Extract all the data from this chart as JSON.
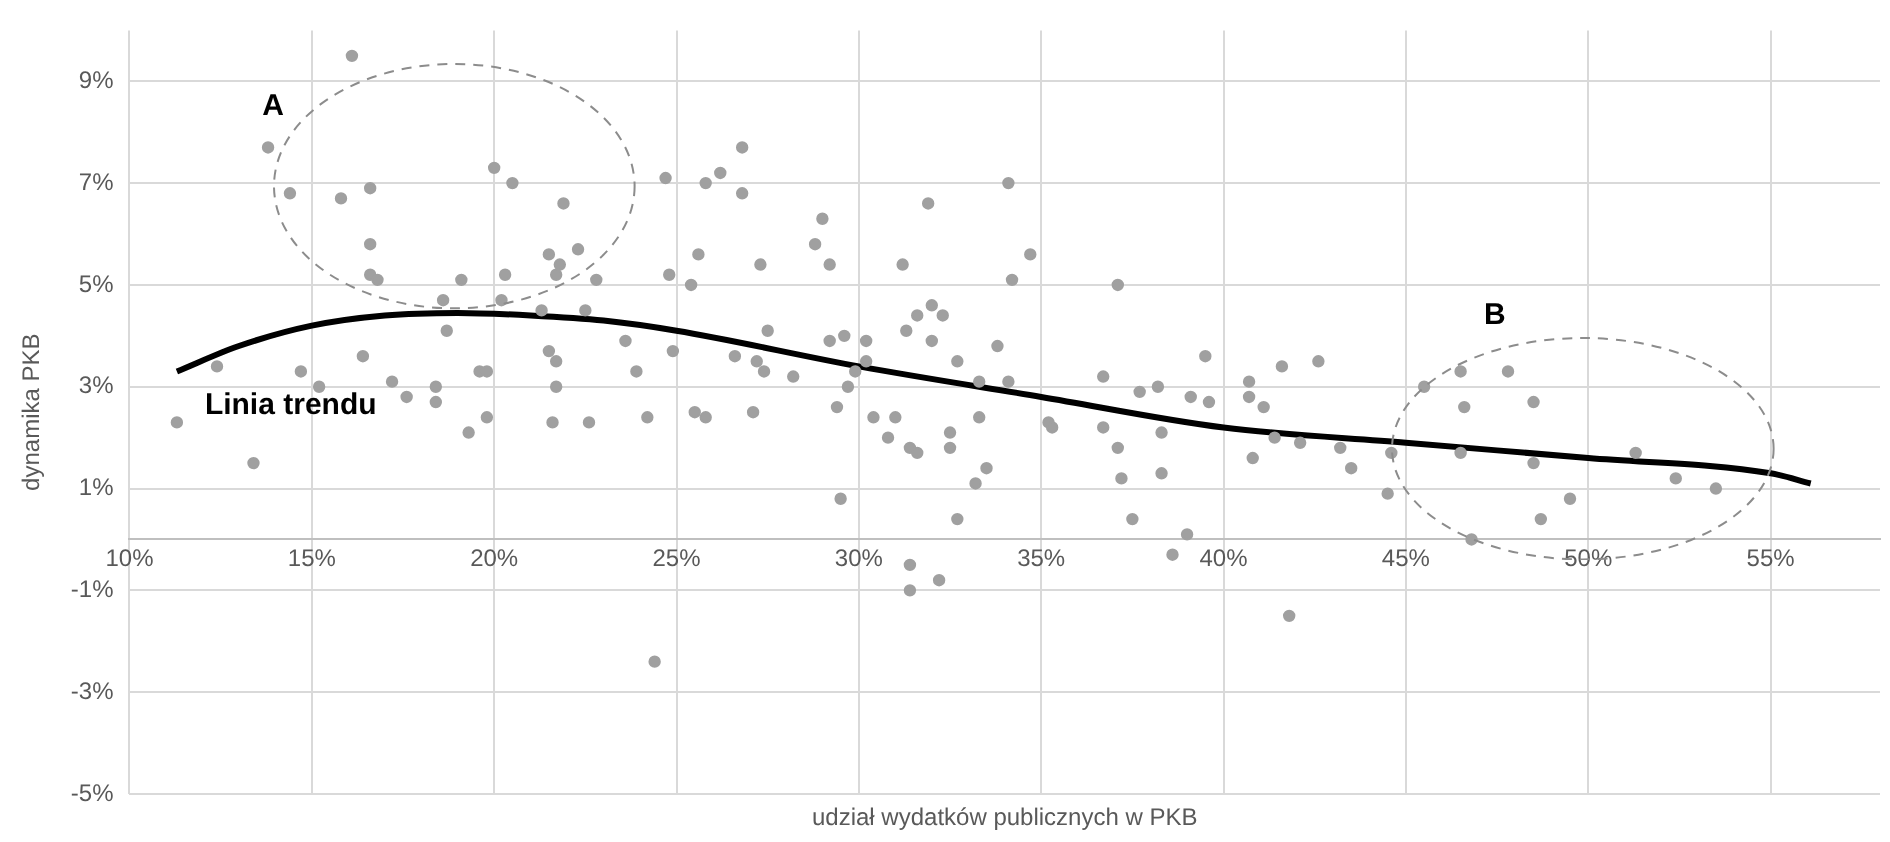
{
  "chart_data": {
    "type": "scatter",
    "xlabel": "udział wydatków publicznych w PKB",
    "ylabel": "dynamika PKB",
    "xlim": [
      10,
      58
    ],
    "ylim": [
      -5,
      10
    ],
    "xticks": [
      {
        "value": 10,
        "label": "10%"
      },
      {
        "value": 15,
        "label": "15%"
      },
      {
        "value": 20,
        "label": "20%"
      },
      {
        "value": 25,
        "label": "25%"
      },
      {
        "value": 30,
        "label": "30%"
      },
      {
        "value": 35,
        "label": "35%"
      },
      {
        "value": 40,
        "label": "40%"
      },
      {
        "value": 45,
        "label": "45%"
      },
      {
        "value": 50,
        "label": "50%"
      },
      {
        "value": 55,
        "label": "55%"
      }
    ],
    "yticks": [
      {
        "value": -5,
        "label": "-5%"
      },
      {
        "value": -3,
        "label": "-3%"
      },
      {
        "value": -1,
        "label": "-1%"
      },
      {
        "value": 1,
        "label": "1%"
      },
      {
        "value": 3,
        "label": "3%"
      },
      {
        "value": 5,
        "label": "5%"
      },
      {
        "value": 7,
        "label": "7%"
      },
      {
        "value": 9,
        "label": "9%"
      }
    ],
    "grid": true,
    "legend": false,
    "marker": "circle",
    "series": [
      {
        "color": "#a0a0a0",
        "x": [
          16.1,
          13.8,
          14.4,
          15.8,
          16.6,
          16.6,
          16.6,
          16.8,
          20.0,
          20.5,
          21.9,
          21.5,
          21.8,
          22.3,
          21.7,
          22.8,
          20.3,
          19.1,
          18.6,
          20.2,
          18.7,
          21.3,
          22.5,
          23.6,
          16.4,
          21.5,
          21.7,
          14.7,
          12.4,
          19.6,
          19.8,
          15.2,
          17.2,
          17.6,
          18.4,
          18.4,
          21.7,
          11.3,
          19.8,
          19.3,
          21.6,
          22.6,
          13.4,
          26.8,
          24.7,
          25.8,
          26.2,
          26.8,
          29.0,
          28.8,
          29.2,
          27.3,
          25.6,
          24.8,
          25.4,
          31.9,
          34.1,
          34.7,
          34.2,
          31.2,
          37.1,
          24.9,
          23.9,
          24.2,
          27.5,
          26.6,
          27.2,
          27.4,
          28.2,
          25.5,
          25.8,
          27.1,
          29.2,
          29.6,
          30.2,
          30.2,
          29.9,
          29.7,
          29.4,
          29.5,
          31.3,
          31.6,
          32.0,
          32.3,
          32.0,
          32.7,
          30.4,
          31.0,
          30.8,
          31.4,
          31.6,
          32.5,
          32.5,
          32.7,
          33.3,
          33.3,
          33.8,
          34.1,
          33.2,
          33.5,
          31.4,
          31.4,
          32.2,
          35.2,
          35.3,
          36.7,
          36.7,
          37.1,
          37.2,
          37.5,
          37.7,
          38.2,
          38.3,
          38.3,
          39.1,
          39.6,
          39.5,
          39.0,
          38.6,
          40.7,
          40.7,
          41.1,
          40.8,
          41.6,
          42.6,
          41.4,
          42.1,
          43.2,
          43.5,
          44.5,
          44.6,
          45.5,
          46.5,
          46.6,
          46.5,
          46.8,
          47.8,
          48.5,
          48.5,
          48.7,
          49.5,
          51.3,
          52.4,
          53.5,
          24.4,
          41.8
        ],
        "values": [
          9.5,
          7.7,
          6.8,
          6.7,
          6.9,
          5.8,
          5.2,
          5.1,
          7.3,
          7.0,
          6.6,
          5.6,
          5.4,
          5.7,
          5.2,
          5.1,
          5.2,
          5.1,
          4.7,
          4.7,
          4.1,
          4.5,
          4.5,
          3.9,
          3.6,
          3.7,
          3.5,
          3.3,
          3.4,
          3.3,
          3.3,
          3.0,
          3.1,
          2.8,
          3.0,
          2.7,
          3.0,
          2.3,
          2.4,
          2.1,
          2.3,
          2.3,
          1.5,
          7.7,
          7.1,
          7.0,
          7.2,
          6.8,
          6.3,
          5.8,
          5.4,
          5.4,
          5.6,
          5.2,
          5.0,
          6.6,
          7.0,
          5.6,
          5.1,
          5.4,
          5.0,
          3.7,
          3.3,
          2.4,
          4.1,
          3.6,
          3.5,
          3.3,
          3.2,
          2.5,
          2.4,
          2.5,
          3.9,
          4.0,
          3.9,
          3.5,
          3.3,
          3.0,
          2.6,
          0.8,
          4.1,
          4.4,
          4.6,
          4.4,
          3.9,
          3.5,
          2.4,
          2.4,
          2.0,
          1.8,
          1.7,
          2.1,
          1.8,
          0.4,
          2.4,
          3.1,
          3.8,
          3.1,
          1.1,
          1.4,
          -0.5,
          -1.0,
          -0.8,
          2.3,
          2.2,
          3.2,
          2.2,
          1.8,
          1.2,
          0.4,
          2.9,
          3.0,
          2.1,
          1.3,
          2.8,
          2.7,
          3.6,
          0.1,
          -0.3,
          3.1,
          2.8,
          2.6,
          1.6,
          3.4,
          3.5,
          2.0,
          1.9,
          1.8,
          1.4,
          0.9,
          1.7,
          3.0,
          3.3,
          2.6,
          1.7,
          0.0,
          3.3,
          2.7,
          1.5,
          0.4,
          0.8,
          1.7,
          1.2,
          1.0,
          -2.4,
          -1.5
        ]
      },
      {
        "type": "line",
        "name": "Linia trendu",
        "color": "#000000",
        "marker": "none",
        "x": [
          11.3,
          13,
          15,
          17,
          19,
          21,
          23,
          25,
          30,
          35,
          40,
          45,
          50,
          55,
          56.1
        ],
        "values": [
          3.3,
          3.8,
          4.2,
          4.4,
          4.45,
          4.4,
          4.3,
          4.1,
          3.4,
          2.8,
          2.2,
          1.9,
          1.6,
          1.3,
          1.1
        ]
      }
    ],
    "annotations": [
      "A",
      "B"
    ]
  }
}
